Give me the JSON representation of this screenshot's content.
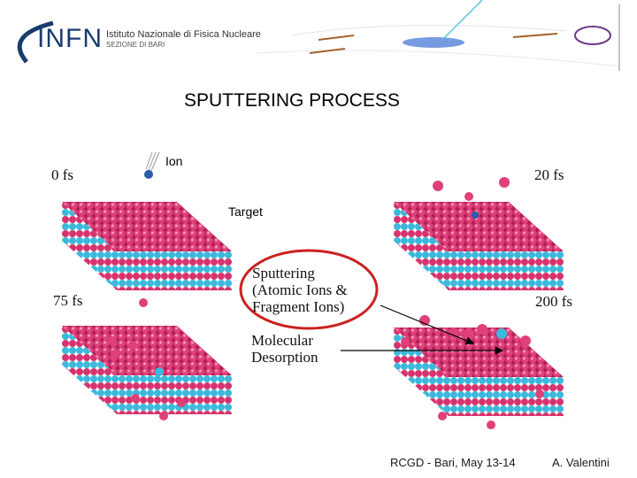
{
  "header": {
    "logo_text": "INFN",
    "institute": "Istituto Nazionale di Fisica Nucleare",
    "section": "SEZIONE DI BARI"
  },
  "title": "SPUTTERING PROCESS",
  "figure": {
    "time_labels": [
      "0 fs",
      "20 fs",
      "75 fs",
      "200 fs"
    ],
    "ion_label": "Ion",
    "target_label": "Target",
    "sputtering_label": [
      "Sputtering",
      "(Atomic Ions &",
      "Fragment Ions)"
    ],
    "desorption_label": [
      "Molecular",
      "Desorption"
    ],
    "colors": {
      "atom_pink": "#d8326e",
      "atom_cyan": "#3bb8dc",
      "ion": "#2a5ca8",
      "ellipse": "#cc2020"
    }
  },
  "footer": {
    "event": "RCGD  - Bari, May 13-14",
    "author": "A. Valentini"
  }
}
